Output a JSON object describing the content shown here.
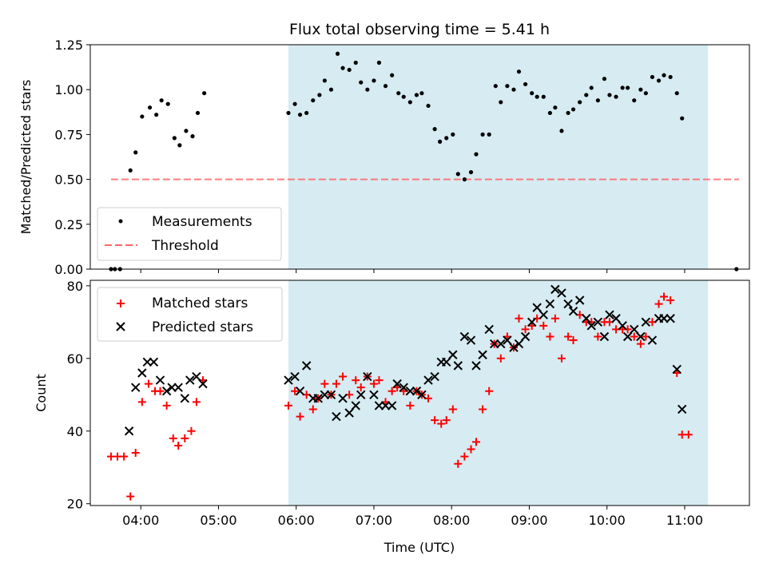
{
  "title": "Flux total observing time = 5.41 h",
  "chart_data": [
    {
      "type": "scatter",
      "title": "Flux total observing time = 5.41 h",
      "xlabel": "",
      "ylabel": "Matched/Predicted stars",
      "xlim": [
        "03:21",
        "11:50"
      ],
      "ylim": [
        0,
        1.25
      ],
      "yticks": [
        "0.00",
        "0.25",
        "0.50",
        "0.75",
        "1.00",
        "1.25"
      ],
      "legend": "lower-left",
      "shaded_region": {
        "start": "05:54",
        "end": "11:18",
        "color": "#add8e6"
      },
      "threshold": {
        "label": "Threshold",
        "y": 0.5,
        "x_start": "03:37",
        "x_end": "11:42",
        "color": "#ff6666",
        "style": "dashed"
      },
      "series": [
        {
          "name": "Measurements",
          "color": "#000000",
          "marker": "dot",
          "points": [
            [
              "03:37",
              0.0
            ],
            [
              "03:40",
              0.0
            ],
            [
              "03:44",
              0.0
            ],
            [
              "03:52",
              0.55
            ],
            [
              "03:56",
              0.65
            ],
            [
              "04:01",
              0.85
            ],
            [
              "04:07",
              0.9
            ],
            [
              "04:12",
              0.86
            ],
            [
              "04:16",
              0.94
            ],
            [
              "04:21",
              0.92
            ],
            [
              "04:26",
              0.73
            ],
            [
              "04:30",
              0.69
            ],
            [
              "04:35",
              0.77
            ],
            [
              "04:40",
              0.74
            ],
            [
              "04:44",
              0.87
            ],
            [
              "04:49",
              0.98
            ],
            [
              "05:54",
              0.87
            ],
            [
              "05:59",
              0.92
            ],
            [
              "06:03",
              0.86
            ],
            [
              "06:08",
              0.87
            ],
            [
              "06:13",
              0.94
            ],
            [
              "06:18",
              0.97
            ],
            [
              "06:22",
              1.05
            ],
            [
              "06:27",
              1.0
            ],
            [
              "06:32",
              1.2
            ],
            [
              "06:36",
              1.12
            ],
            [
              "06:41",
              1.11
            ],
            [
              "06:46",
              1.15
            ],
            [
              "06:50",
              1.04
            ],
            [
              "06:55",
              1.0
            ],
            [
              "07:00",
              1.05
            ],
            [
              "07:04",
              1.15
            ],
            [
              "07:09",
              1.02
            ],
            [
              "07:14",
              1.08
            ],
            [
              "07:19",
              0.98
            ],
            [
              "07:23",
              0.96
            ],
            [
              "07:28",
              0.93
            ],
            [
              "07:33",
              0.97
            ],
            [
              "07:37",
              0.98
            ],
            [
              "07:42",
              0.91
            ],
            [
              "07:47",
              0.78
            ],
            [
              "07:51",
              0.71
            ],
            [
              "07:56",
              0.73
            ],
            [
              "08:01",
              0.75
            ],
            [
              "08:05",
              0.53
            ],
            [
              "08:10",
              0.5
            ],
            [
              "08:15",
              0.54
            ],
            [
              "08:19",
              0.64
            ],
            [
              "08:24",
              0.75
            ],
            [
              "08:29",
              0.75
            ],
            [
              "08:34",
              1.02
            ],
            [
              "08:38",
              0.93
            ],
            [
              "08:43",
              1.02
            ],
            [
              "08:48",
              1.0
            ],
            [
              "08:52",
              1.1
            ],
            [
              "08:57",
              1.03
            ],
            [
              "09:02",
              0.98
            ],
            [
              "09:06",
              0.96
            ],
            [
              "09:11",
              0.96
            ],
            [
              "09:16",
              0.87
            ],
            [
              "09:20",
              0.9
            ],
            [
              "09:25",
              0.77
            ],
            [
              "09:30",
              0.87
            ],
            [
              "09:34",
              0.89
            ],
            [
              "09:39",
              0.93
            ],
            [
              "09:44",
              0.97
            ],
            [
              "09:48",
              1.01
            ],
            [
              "09:53",
              0.94
            ],
            [
              "09:58",
              1.06
            ],
            [
              "10:02",
              0.97
            ],
            [
              "10:07",
              0.96
            ],
            [
              "10:12",
              1.01
            ],
            [
              "10:16",
              1.01
            ],
            [
              "10:21",
              0.94
            ],
            [
              "10:26",
              1.0
            ],
            [
              "10:30",
              0.98
            ],
            [
              "10:35",
              1.07
            ],
            [
              "10:40",
              1.05
            ],
            [
              "10:44",
              1.08
            ],
            [
              "10:49",
              1.07
            ],
            [
              "10:54",
              0.98
            ],
            [
              "10:58",
              0.84
            ],
            [
              "11:40",
              0.0
            ]
          ]
        }
      ]
    },
    {
      "type": "scatter",
      "title": "",
      "xlabel": "Time (UTC)",
      "ylabel": "Count",
      "xlim": [
        "03:21",
        "11:50"
      ],
      "ylim": [
        19.5,
        81.5
      ],
      "xticks": [
        "04:00",
        "05:00",
        "06:00",
        "07:00",
        "08:00",
        "09:00",
        "10:00",
        "11:00"
      ],
      "yticks": [
        "20",
        "40",
        "60",
        "80"
      ],
      "legend": "top-left",
      "shaded_region": {
        "start": "05:54",
        "end": "11:18",
        "color": "#add8e6"
      },
      "series": [
        {
          "name": "Matched stars",
          "color": "#ff0000",
          "marker": "plus",
          "points": [
            [
              "03:37",
              33
            ],
            [
              "03:42",
              33
            ],
            [
              "03:47",
              33
            ],
            [
              "03:52",
              22
            ],
            [
              "03:56",
              34
            ],
            [
              "04:01",
              48
            ],
            [
              "04:06",
              53
            ],
            [
              "04:11",
              51
            ],
            [
              "04:15",
              51
            ],
            [
              "04:20",
              47
            ],
            [
              "04:25",
              38
            ],
            [
              "04:29",
              36
            ],
            [
              "04:34",
              38
            ],
            [
              "04:39",
              40
            ],
            [
              "04:43",
              48
            ],
            [
              "04:48",
              54
            ],
            [
              "05:54",
              47
            ],
            [
              "05:59",
              51
            ],
            [
              "06:03",
              44
            ],
            [
              "06:08",
              50
            ],
            [
              "06:13",
              46
            ],
            [
              "06:17",
              49
            ],
            [
              "06:22",
              53
            ],
            [
              "06:27",
              50
            ],
            [
              "06:31",
              53
            ],
            [
              "06:36",
              55
            ],
            [
              "06:41",
              50
            ],
            [
              "06:46",
              54
            ],
            [
              "06:50",
              52
            ],
            [
              "06:55",
              55
            ],
            [
              "07:00",
              53
            ],
            [
              "07:04",
              54
            ],
            [
              "07:09",
              48
            ],
            [
              "07:14",
              51
            ],
            [
              "07:18",
              52
            ],
            [
              "07:23",
              51
            ],
            [
              "07:28",
              47
            ],
            [
              "07:33",
              51
            ],
            [
              "07:37",
              50
            ],
            [
              "07:42",
              49
            ],
            [
              "07:47",
              43
            ],
            [
              "07:52",
              42
            ],
            [
              "07:56",
              43
            ],
            [
              "08:01",
              46
            ],
            [
              "08:05",
              31
            ],
            [
              "08:10",
              33
            ],
            [
              "08:15",
              35
            ],
            [
              "08:19",
              37
            ],
            [
              "08:24",
              46
            ],
            [
              "08:29",
              51
            ],
            [
              "08:33",
              64
            ],
            [
              "08:38",
              60
            ],
            [
              "08:43",
              66
            ],
            [
              "08:48",
              63
            ],
            [
              "08:52",
              71
            ],
            [
              "08:57",
              68
            ],
            [
              "09:02",
              69
            ],
            [
              "09:06",
              71
            ],
            [
              "09:11",
              69
            ],
            [
              "09:16",
              66
            ],
            [
              "09:20",
              71
            ],
            [
              "09:25",
              60
            ],
            [
              "09:30",
              66
            ],
            [
              "09:34",
              65
            ],
            [
              "09:39",
              72
            ],
            [
              "09:44",
              70
            ],
            [
              "09:48",
              70
            ],
            [
              "09:53",
              66
            ],
            [
              "09:58",
              70
            ],
            [
              "10:02",
              70
            ],
            [
              "10:07",
              68
            ],
            [
              "10:12",
              68
            ],
            [
              "10:16",
              68
            ],
            [
              "10:21",
              66
            ],
            [
              "10:26",
              64
            ],
            [
              "10:30",
              66
            ],
            [
              "10:35",
              70
            ],
            [
              "10:40",
              75
            ],
            [
              "10:44",
              77
            ],
            [
              "10:49",
              76
            ],
            [
              "10:54",
              56
            ],
            [
              "10:58",
              39
            ],
            [
              "11:03",
              39
            ]
          ]
        },
        {
          "name": "Predicted stars",
          "color": "#000000",
          "marker": "x",
          "points": [
            [
              "03:51",
              40
            ],
            [
              "03:56",
              52
            ],
            [
              "04:01",
              56
            ],
            [
              "04:05",
              59
            ],
            [
              "04:10",
              59
            ],
            [
              "04:15",
              54
            ],
            [
              "04:20",
              51
            ],
            [
              "04:24",
              52
            ],
            [
              "04:29",
              52
            ],
            [
              "04:34",
              49
            ],
            [
              "04:38",
              54
            ],
            [
              "04:43",
              55
            ],
            [
              "04:48",
              53
            ],
            [
              "05:54",
              54
            ],
            [
              "05:59",
              55
            ],
            [
              "06:03",
              51
            ],
            [
              "06:08",
              58
            ],
            [
              "06:13",
              49
            ],
            [
              "06:17",
              49
            ],
            [
              "06:22",
              50
            ],
            [
              "06:27",
              50
            ],
            [
              "06:31",
              44
            ],
            [
              "06:36",
              49
            ],
            [
              "06:41",
              45
            ],
            [
              "06:46",
              47
            ],
            [
              "06:50",
              50
            ],
            [
              "06:55",
              55
            ],
            [
              "07:00",
              50
            ],
            [
              "07:04",
              47
            ],
            [
              "07:09",
              47
            ],
            [
              "07:14",
              47
            ],
            [
              "07:18",
              53
            ],
            [
              "07:23",
              52
            ],
            [
              "07:28",
              51
            ],
            [
              "07:33",
              51
            ],
            [
              "07:37",
              50
            ],
            [
              "07:42",
              54
            ],
            [
              "07:47",
              55
            ],
            [
              "07:52",
              59
            ],
            [
              "07:56",
              59
            ],
            [
              "08:01",
              61
            ],
            [
              "08:05",
              58
            ],
            [
              "08:10",
              66
            ],
            [
              "08:15",
              65
            ],
            [
              "08:19",
              58
            ],
            [
              "08:24",
              61
            ],
            [
              "08:29",
              68
            ],
            [
              "08:33",
              64
            ],
            [
              "08:38",
              64
            ],
            [
              "08:43",
              65
            ],
            [
              "08:48",
              63
            ],
            [
              "08:52",
              64
            ],
            [
              "08:57",
              66
            ],
            [
              "09:02",
              70
            ],
            [
              "09:06",
              74
            ],
            [
              "09:11",
              72
            ],
            [
              "09:16",
              75
            ],
            [
              "09:20",
              79
            ],
            [
              "09:25",
              78
            ],
            [
              "09:30",
              75
            ],
            [
              "09:34",
              73
            ],
            [
              "09:39",
              76
            ],
            [
              "09:44",
              71
            ],
            [
              "09:48",
              69
            ],
            [
              "09:53",
              70
            ],
            [
              "09:58",
              66
            ],
            [
              "10:02",
              72
            ],
            [
              "10:07",
              71
            ],
            [
              "10:12",
              69
            ],
            [
              "10:16",
              66
            ],
            [
              "10:21",
              68
            ],
            [
              "10:26",
              66
            ],
            [
              "10:30",
              70
            ],
            [
              "10:35",
              65
            ],
            [
              "10:40",
              71
            ],
            [
              "10:44",
              71
            ],
            [
              "10:49",
              71
            ],
            [
              "10:54",
              57
            ],
            [
              "10:58",
              46
            ]
          ]
        }
      ]
    }
  ]
}
